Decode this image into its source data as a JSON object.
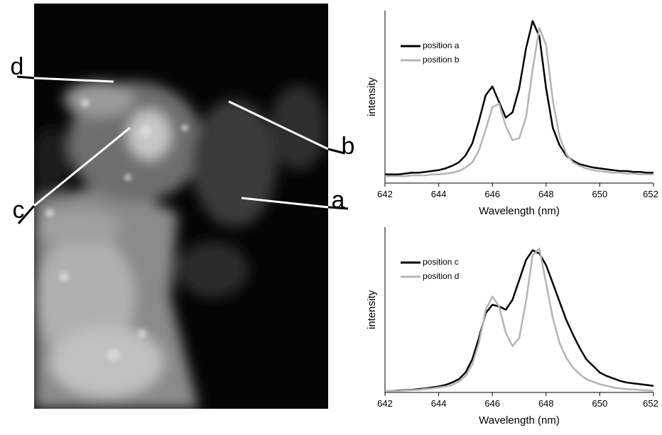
{
  "image": {
    "labels": [
      "a",
      "b",
      "c",
      "d"
    ]
  },
  "chart_data": [
    {
      "type": "line",
      "xlabel": "Wavelength (nm)",
      "ylabel": "intensity",
      "xlim": [
        642,
        652
      ],
      "xticks": [
        642,
        644,
        646,
        648,
        650,
        652
      ],
      "ylim": [
        0,
        1
      ],
      "legend": "upper left",
      "x": [
        642,
        642.25,
        642.5,
        642.75,
        643,
        643.25,
        643.5,
        643.75,
        644,
        644.25,
        644.5,
        644.75,
        645,
        645.25,
        645.5,
        645.75,
        646,
        646.25,
        646.5,
        646.75,
        647,
        647.25,
        647.5,
        647.75,
        648,
        648.25,
        648.5,
        648.75,
        649,
        649.25,
        649.5,
        649.75,
        650,
        650.25,
        650.5,
        650.75,
        651,
        651.25,
        651.5,
        651.75,
        652
      ],
      "series": [
        {
          "name": "position a",
          "color": "#000000",
          "values": [
            0.05,
            0.05,
            0.05,
            0.055,
            0.06,
            0.06,
            0.065,
            0.07,
            0.075,
            0.085,
            0.1,
            0.12,
            0.16,
            0.23,
            0.36,
            0.51,
            0.56,
            0.47,
            0.38,
            0.41,
            0.55,
            0.78,
            0.94,
            0.85,
            0.55,
            0.32,
            0.22,
            0.16,
            0.13,
            0.11,
            0.1,
            0.09,
            0.085,
            0.08,
            0.075,
            0.07,
            0.07,
            0.065,
            0.065,
            0.06,
            0.06
          ]
        },
        {
          "name": "position b",
          "color": "#b4b4b4",
          "values": [
            0.04,
            0.04,
            0.04,
            0.04,
            0.045,
            0.045,
            0.045,
            0.05,
            0.05,
            0.055,
            0.06,
            0.07,
            0.09,
            0.12,
            0.19,
            0.31,
            0.44,
            0.46,
            0.33,
            0.25,
            0.26,
            0.38,
            0.66,
            0.9,
            0.8,
            0.48,
            0.27,
            0.17,
            0.12,
            0.1,
            0.085,
            0.075,
            0.07,
            0.065,
            0.06,
            0.06,
            0.055,
            0.055,
            0.05,
            0.05,
            0.05
          ]
        }
      ]
    },
    {
      "type": "line",
      "xlabel": "Wavelength (nm)",
      "ylabel": "intensity",
      "xlim": [
        642,
        652
      ],
      "xticks": [
        642,
        644,
        646,
        648,
        650,
        652
      ],
      "ylim": [
        0,
        1
      ],
      "legend": "upper left",
      "x": [
        642,
        642.25,
        642.5,
        642.75,
        643,
        643.25,
        643.5,
        643.75,
        644,
        644.25,
        644.5,
        644.75,
        645,
        645.25,
        645.5,
        645.75,
        646,
        646.25,
        646.5,
        646.75,
        647,
        647.25,
        647.5,
        647.75,
        648,
        648.25,
        648.5,
        648.75,
        649,
        649.25,
        649.5,
        649.75,
        650,
        650.25,
        650.5,
        650.75,
        651,
        651.25,
        651.5,
        651.75,
        652
      ],
      "series": [
        {
          "name": "position c",
          "color": "#000000",
          "values": [
            0.01,
            0.01,
            0.012,
            0.014,
            0.016,
            0.02,
            0.024,
            0.03,
            0.036,
            0.045,
            0.06,
            0.08,
            0.12,
            0.2,
            0.33,
            0.48,
            0.53,
            0.52,
            0.5,
            0.56,
            0.68,
            0.8,
            0.86,
            0.84,
            0.77,
            0.66,
            0.55,
            0.44,
            0.35,
            0.27,
            0.2,
            0.16,
            0.12,
            0.1,
            0.085,
            0.07,
            0.06,
            0.055,
            0.05,
            0.045,
            0.04
          ]
        },
        {
          "name": "position d",
          "color": "#b4b4b4",
          "values": [
            0.01,
            0.01,
            0.01,
            0.012,
            0.014,
            0.016,
            0.02,
            0.024,
            0.03,
            0.036,
            0.045,
            0.065,
            0.1,
            0.17,
            0.3,
            0.5,
            0.58,
            0.52,
            0.36,
            0.28,
            0.33,
            0.55,
            0.83,
            0.87,
            0.66,
            0.45,
            0.3,
            0.21,
            0.15,
            0.11,
            0.08,
            0.065,
            0.05,
            0.04,
            0.03,
            0.025,
            0.02,
            0.018,
            0.015,
            0.012,
            0.01
          ]
        }
      ]
    }
  ]
}
